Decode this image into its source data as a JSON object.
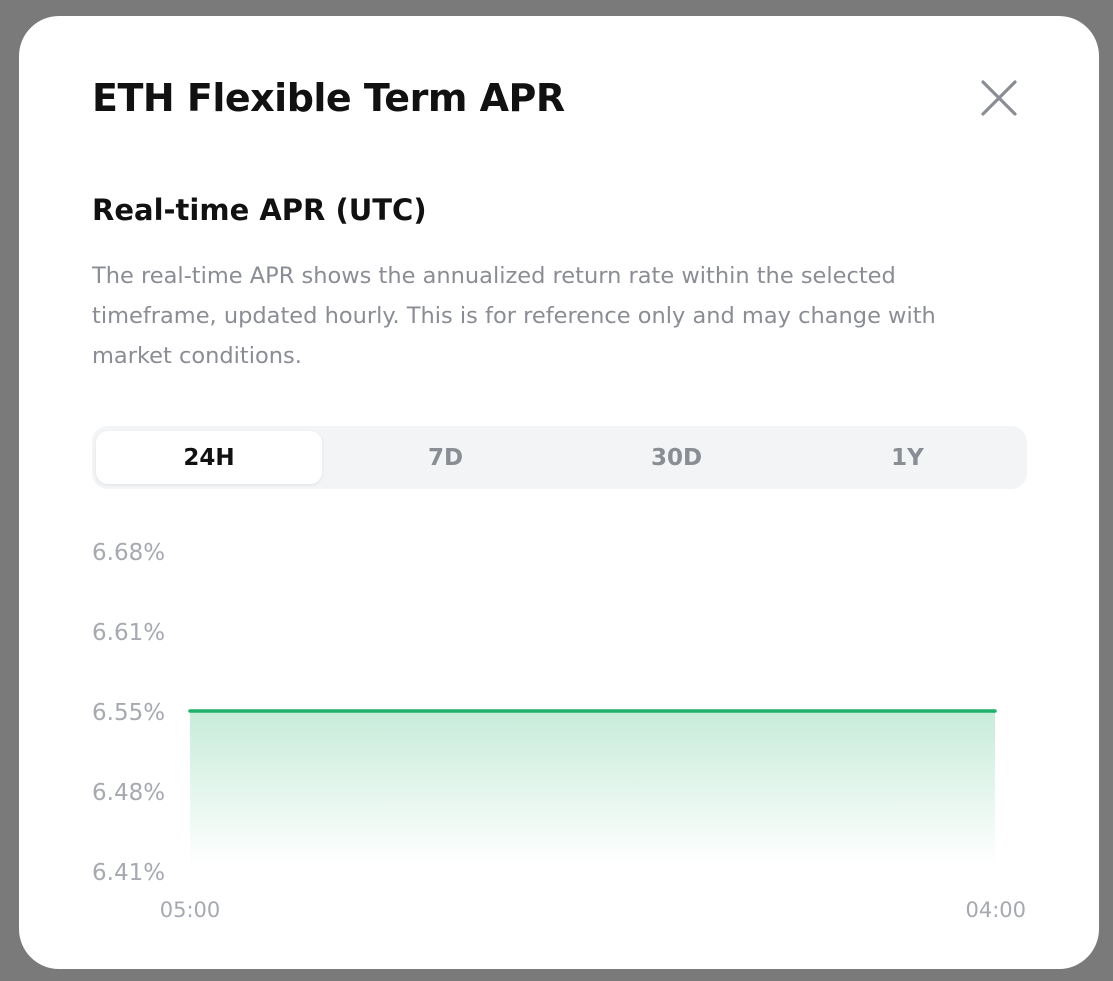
{
  "modal": {
    "title": "ETH Flexible Term APR",
    "close_icon": "close-icon",
    "subtitle": "Real-time APR (UTC)",
    "description": "The real-time APR shows the annualized return rate within the selected timeframe, updated hourly. This is for reference only and may change with market conditions.",
    "tabs": [
      {
        "label": "24H",
        "active": true
      },
      {
        "label": "7D",
        "active": false
      },
      {
        "label": "30D",
        "active": false
      },
      {
        "label": "1Y",
        "active": false
      }
    ]
  },
  "chart_data": {
    "type": "area",
    "title": "",
    "xlabel": "",
    "ylabel": "",
    "x_tick_labels": [
      "05:00",
      "04:00"
    ],
    "y_tick_labels": [
      "6.68%",
      "6.61%",
      "6.55%",
      "6.48%",
      "6.41%"
    ],
    "ylim": [
      6.41,
      6.68
    ],
    "series": [
      {
        "x": [
          "05:00",
          "04:00"
        ],
        "values": [
          6.55,
          6.55
        ],
        "color": "#20b26c"
      }
    ],
    "grid": false
  }
}
